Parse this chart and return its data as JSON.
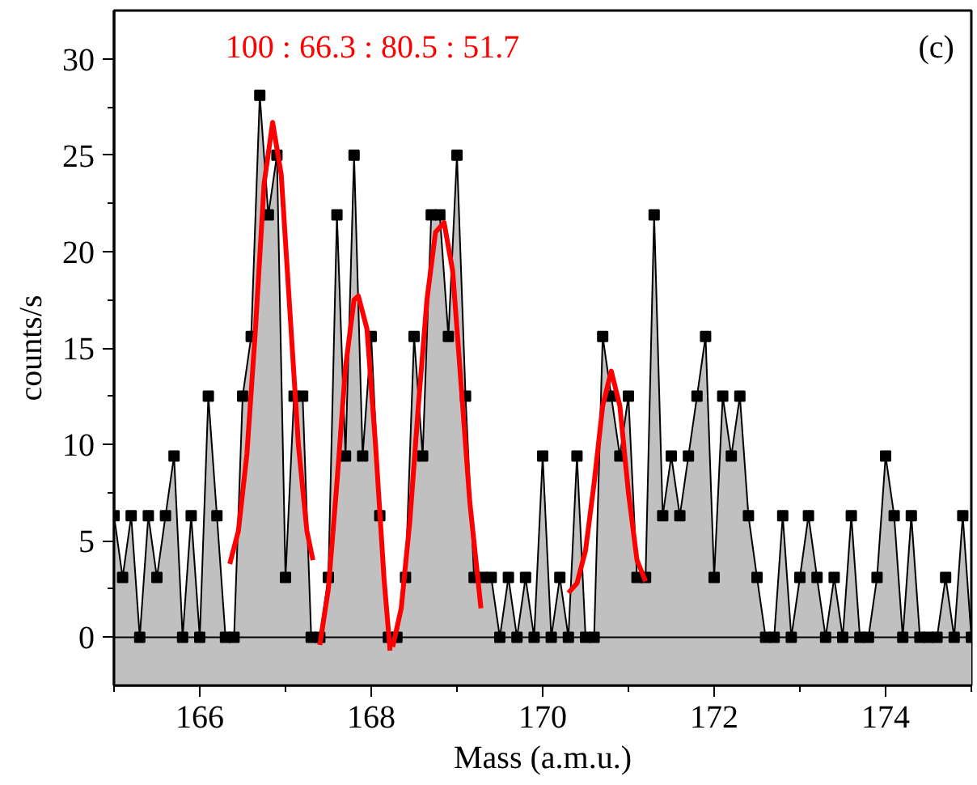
{
  "chart_data": {
    "type": "area",
    "xlabel": "Mass (a.m.u.)",
    "ylabel": "counts/s",
    "annotations": [
      "100 : 66.3 : 80.5 : 51.7",
      "(c)"
    ],
    "xlim": [
      165,
      175
    ],
    "ylim": [
      -2.5,
      32.5
    ],
    "xticks": [
      166,
      168,
      170,
      172,
      174
    ],
    "yticks": [
      0,
      5,
      10,
      15,
      20,
      25,
      30
    ],
    "grid": false,
    "bands": [
      {
        "axis": "y",
        "from": -2.5,
        "to": 0,
        "color": "#c0c0c0"
      }
    ],
    "series": [
      {
        "color": "#c0c0c0",
        "marker": "square",
        "x": [
          165.0,
          165.1,
          165.2,
          165.3,
          165.4,
          165.5,
          165.6,
          165.7,
          165.8,
          165.9,
          166.0,
          166.1,
          166.2,
          166.3,
          166.4,
          166.5,
          166.6,
          166.7,
          166.8,
          166.9,
          167.0,
          167.1,
          167.2,
          167.3,
          167.4,
          167.5,
          167.6,
          167.7,
          167.8,
          167.9,
          168.0,
          168.1,
          168.2,
          168.3,
          168.4,
          168.5,
          168.6,
          168.7,
          168.8,
          168.9,
          169.0,
          169.1,
          169.2,
          169.3,
          169.4,
          169.5,
          169.6,
          169.7,
          169.8,
          169.9,
          170.0,
          170.1,
          170.2,
          170.3,
          170.4,
          170.5,
          170.6,
          170.7,
          170.8,
          170.9,
          171.0,
          171.1,
          171.2,
          171.3,
          171.4,
          171.5,
          171.6,
          171.7,
          171.8,
          171.9,
          172.0,
          172.1,
          172.2,
          172.3,
          172.4,
          172.5,
          172.6,
          172.7,
          172.8,
          172.9,
          173.0,
          173.1,
          173.2,
          173.3,
          173.4,
          173.5,
          173.6,
          173.7,
          173.8,
          173.9,
          174.0,
          174.1,
          174.2,
          174.3,
          174.4,
          174.5,
          174.6,
          174.7,
          174.8,
          174.9,
          175.0
        ],
        "values": [
          6.3,
          3.1,
          6.3,
          0,
          6.3,
          3.1,
          6.3,
          9.4,
          0,
          6.3,
          0,
          12.5,
          6.3,
          0,
          0,
          12.5,
          15.6,
          28.1,
          21.9,
          25,
          3.1,
          12.5,
          12.5,
          0,
          0,
          3.1,
          21.9,
          9.4,
          25,
          9.4,
          15.6,
          6.3,
          0,
          0,
          3.1,
          15.6,
          9.4,
          21.9,
          21.9,
          15.6,
          25,
          12.5,
          3.1,
          3.1,
          3.1,
          0,
          3.1,
          0,
          3.1,
          0,
          9.4,
          0,
          3.1,
          0,
          9.4,
          0,
          0,
          15.6,
          12.5,
          9.4,
          12.5,
          3.1,
          3.1,
          21.9,
          6.3,
          9.4,
          6.3,
          9.4,
          12.5,
          15.6,
          3.1,
          12.5,
          9.4,
          12.5,
          6.3,
          3.1,
          0,
          0,
          6.3,
          0,
          3.1,
          6.3,
          3.1,
          0,
          3.1,
          0,
          6.3,
          0,
          0,
          3.1,
          9.4,
          6.3,
          0,
          6.3,
          0,
          0,
          0,
          3.1,
          0,
          6.3,
          0
        ]
      },
      {
        "type": "line",
        "color": "#ff0000",
        "x": [
          166.35,
          166.45,
          166.55,
          166.65,
          166.75,
          166.85,
          166.95,
          167.05,
          167.15,
          167.25,
          167.32
        ],
        "values": [
          3.8,
          5.5,
          9.5,
          16,
          23.5,
          26.7,
          24,
          17,
          10,
          5.5,
          4
        ]
      },
      {
        "type": "line",
        "color": "#ff0000",
        "x": [
          167.4,
          167.5,
          167.6,
          167.7,
          167.8,
          167.85,
          167.95,
          168.05,
          168.15,
          168.22
        ],
        "values": [
          -0.4,
          2.5,
          8,
          14,
          17.5,
          17.7,
          16,
          10,
          3,
          -0.7
        ]
      },
      {
        "type": "line",
        "color": "#ff0000",
        "x": [
          168.25,
          168.35,
          168.45,
          168.55,
          168.65,
          168.75,
          168.85,
          168.95,
          169.05,
          169.15,
          169.28
        ],
        "values": [
          -0.5,
          1.5,
          6,
          12,
          17.5,
          21,
          21.5,
          19,
          13,
          7,
          1.5
        ]
      },
      {
        "type": "line",
        "color": "#ff0000",
        "x": [
          170.3,
          170.4,
          170.5,
          170.6,
          170.7,
          170.8,
          170.9,
          171.0,
          171.1,
          171.2
        ],
        "values": [
          2.3,
          2.8,
          4.5,
          8,
          12,
          13.8,
          12,
          7.5,
          4,
          2.9
        ]
      }
    ]
  }
}
